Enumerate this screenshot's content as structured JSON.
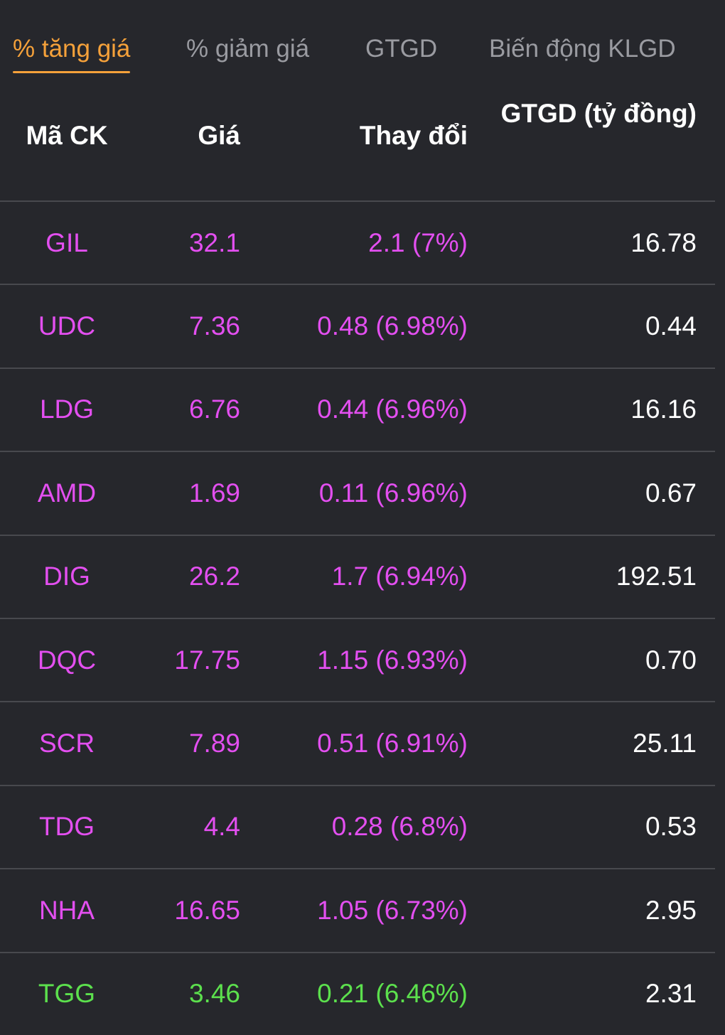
{
  "tabs": [
    {
      "label": "% tăng giá",
      "active": true
    },
    {
      "label": "% giảm giá",
      "active": false
    },
    {
      "label": "GTGD",
      "active": false
    },
    {
      "label": "Biến động KLGD",
      "active": false
    }
  ],
  "colors": {
    "background": "#26272c",
    "active_tab": "#f5a13a",
    "inactive_tab": "#9a9ba1",
    "ceiling_price": "#e34ff0",
    "price_up": "#5ce04d",
    "value_text": "#ffffff",
    "divider": "#48494e"
  },
  "table": {
    "headers": {
      "code": "Mã CK",
      "price": "Giá",
      "change": "Thay đổi",
      "value": "GTGD (tỷ đồng)"
    },
    "rows": [
      {
        "code": "GIL",
        "price": "32.1",
        "change": "2.1 (7%)",
        "value": "16.78",
        "status": "ceil"
      },
      {
        "code": "UDC",
        "price": "7.36",
        "change": "0.48 (6.98%)",
        "value": "0.44",
        "status": "ceil"
      },
      {
        "code": "LDG",
        "price": "6.76",
        "change": "0.44 (6.96%)",
        "value": "16.16",
        "status": "ceil"
      },
      {
        "code": "AMD",
        "price": "1.69",
        "change": "0.11 (6.96%)",
        "value": "0.67",
        "status": "ceil"
      },
      {
        "code": "DIG",
        "price": "26.2",
        "change": "1.7 (6.94%)",
        "value": "192.51",
        "status": "ceil"
      },
      {
        "code": "DQC",
        "price": "17.75",
        "change": "1.15 (6.93%)",
        "value": "0.70",
        "status": "ceil"
      },
      {
        "code": "SCR",
        "price": "7.89",
        "change": "0.51 (6.91%)",
        "value": "25.11",
        "status": "ceil"
      },
      {
        "code": "TDG",
        "price": "4.4",
        "change": "0.28 (6.8%)",
        "value": "0.53",
        "status": "ceil"
      },
      {
        "code": "NHA",
        "price": "16.65",
        "change": "1.05 (6.73%)",
        "value": "2.95",
        "status": "ceil"
      },
      {
        "code": "TGG",
        "price": "3.46",
        "change": "0.21 (6.46%)",
        "value": "2.31",
        "status": "up"
      }
    ]
  }
}
